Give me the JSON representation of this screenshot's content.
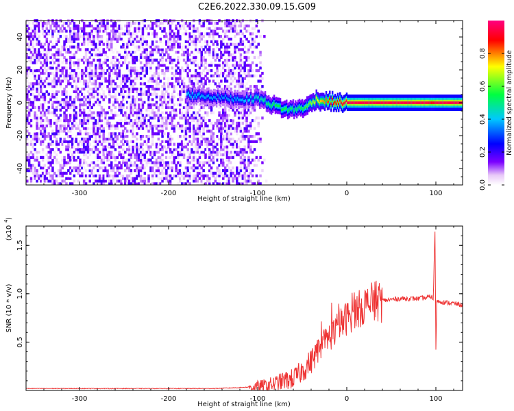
{
  "title": "C2E6.2022.330.09.15.G09",
  "chart_data": [
    {
      "type": "heatmap",
      "xlabel": "Height of straight line (km)",
      "ylabel": "Frequency (Hz)",
      "xlim": [
        -360,
        130
      ],
      "ylim": [
        -50,
        50
      ],
      "xticks": [
        -300,
        -200,
        -100,
        0,
        100
      ],
      "yticks": [
        -40,
        -20,
        0,
        20,
        40
      ],
      "colorbar": {
        "label": "Normalized spectral amplitude",
        "range": [
          0.0,
          1.0
        ],
        "ticks": [
          0.0,
          0.2,
          0.4,
          0.6,
          0.8
        ],
        "colormap": [
          "#ffffff",
          "#e8c8f8",
          "#7b00ff",
          "#0000ff",
          "#00c8ff",
          "#00ff40",
          "#ffff00",
          "#ff0000",
          "#ff0080"
        ]
      },
      "signal_track": {
        "x": [
          -180,
          -140,
          -110,
          -100,
          -90,
          -80,
          -70,
          -60,
          -50,
          -45,
          -40,
          -35,
          -30,
          -20,
          -10,
          0,
          20,
          50,
          90,
          95,
          100,
          130
        ],
        "y": [
          5,
          3,
          2,
          3,
          0,
          -2,
          -4,
          -4,
          -3,
          -2,
          0,
          2,
          1,
          1,
          0,
          0,
          0,
          0,
          0,
          0,
          0,
          0
        ],
        "amplitude": [
          0.4,
          0.35,
          0.4,
          0.45,
          0.5,
          0.55,
          0.55,
          0.5,
          0.55,
          0.6,
          0.65,
          0.7,
          0.75,
          0.85,
          0.9,
          0.95,
          0.95,
          0.95,
          0.95,
          0.9,
          0.95,
          0.95
        ]
      },
      "noise_region_x": [
        -360,
        -105
      ]
    },
    {
      "type": "line",
      "xlabel": "Height of straight line (km)",
      "ylabel": "SNR (10 * v/v)",
      "yscale_label": "(x10",
      "yscale_exponent": "4",
      "xlim": [
        -360,
        130
      ],
      "ylim": [
        0,
        1.7
      ],
      "xticks": [
        -300,
        -200,
        -100,
        0,
        100
      ],
      "yticks": [
        0.5,
        1.0,
        1.5
      ],
      "ytick_labels": [
        "0.5",
        "1.0",
        "1.5"
      ],
      "color": "#ee3333",
      "series": [
        {
          "x": [
            -360,
            -300,
            -250,
            -200,
            -150,
            -120,
            -100,
            -90,
            -80,
            -70,
            -60,
            -50,
            -40,
            -30,
            -20,
            -10,
            0,
            10,
            20,
            30,
            40,
            50,
            60,
            70,
            80,
            90,
            95,
            97,
            98,
            99,
            100,
            101,
            102,
            105,
            110,
            120,
            130
          ],
          "y": [
            0.02,
            0.02,
            0.02,
            0.02,
            0.02,
            0.03,
            0.04,
            0.05,
            0.07,
            0.1,
            0.12,
            0.2,
            0.3,
            0.45,
            0.55,
            0.65,
            0.75,
            0.82,
            0.88,
            0.91,
            0.93,
            0.94,
            0.95,
            0.95,
            0.95,
            0.96,
            0.97,
            0.95,
            1.3,
            1.65,
            0.4,
            0.95,
            0.92,
            0.92,
            0.91,
            0.9,
            0.88
          ]
        }
      ]
    }
  ]
}
